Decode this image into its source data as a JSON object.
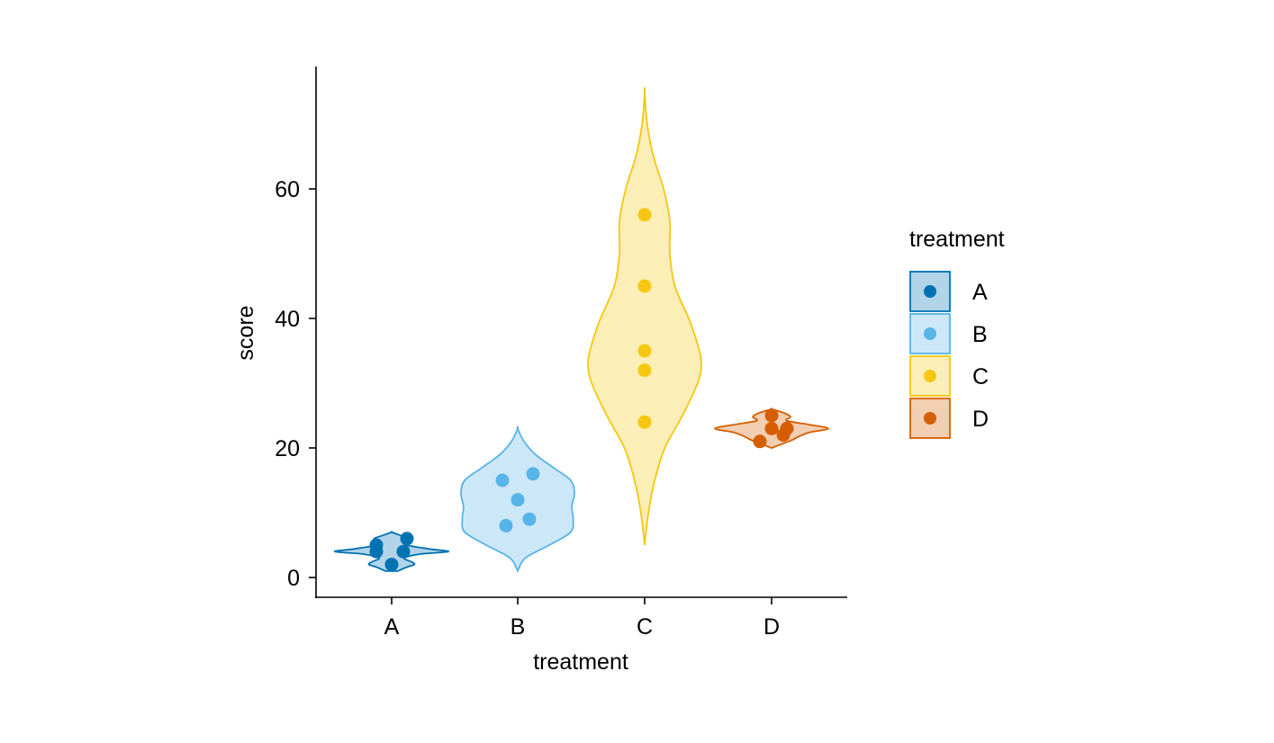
{
  "chart_data": {
    "type": "violin",
    "xlabel": "treatment",
    "ylabel": "score",
    "categories": [
      "A",
      "B",
      "C",
      "D"
    ],
    "y_ticks": [
      0,
      20,
      40,
      60
    ],
    "ylim": [
      -3,
      78
    ],
    "grid": false,
    "legend": {
      "title": "treatment",
      "position": "right"
    },
    "series": [
      {
        "name": "A",
        "color": "#0072B2",
        "values": [
          2,
          4,
          4,
          5,
          6
        ],
        "violin_range": [
          1,
          7
        ],
        "violin_profile": [
          [
            1,
            0.05
          ],
          [
            1.6,
            0.12
          ],
          [
            2,
            0.18
          ],
          [
            2.4,
            0.16
          ],
          [
            3,
            0.1
          ],
          [
            3.6,
            0.22
          ],
          [
            4,
            0.45
          ],
          [
            4.4,
            0.3
          ],
          [
            5,
            0.12
          ],
          [
            5.6,
            0.1
          ],
          [
            6,
            0.14
          ],
          [
            6.5,
            0.07
          ],
          [
            7,
            0.0
          ]
        ]
      },
      {
        "name": "B",
        "color": "#56B4E9",
        "values": [
          8,
          9,
          12,
          15,
          16
        ],
        "violin_range": [
          1,
          23
        ],
        "violin_profile": [
          [
            1,
            0.0
          ],
          [
            3,
            0.06
          ],
          [
            5,
            0.25
          ],
          [
            7,
            0.42
          ],
          [
            9,
            0.44
          ],
          [
            11,
            0.43
          ],
          [
            13,
            0.45
          ],
          [
            15,
            0.42
          ],
          [
            17,
            0.28
          ],
          [
            19,
            0.14
          ],
          [
            21,
            0.05
          ],
          [
            23,
            0.0
          ]
        ]
      },
      {
        "name": "C",
        "color": "#F5C710",
        "values": [
          24,
          32,
          35,
          45,
          56
        ],
        "violin_range": [
          5,
          75
        ],
        "violin_profile": [
          [
            5,
            0.0
          ],
          [
            10,
            0.03
          ],
          [
            15,
            0.08
          ],
          [
            20,
            0.16
          ],
          [
            25,
            0.3
          ],
          [
            30,
            0.42
          ],
          [
            33,
            0.45
          ],
          [
            36,
            0.42
          ],
          [
            40,
            0.35
          ],
          [
            45,
            0.24
          ],
          [
            50,
            0.2
          ],
          [
            55,
            0.2
          ],
          [
            60,
            0.15
          ],
          [
            65,
            0.07
          ],
          [
            70,
            0.02
          ],
          [
            75,
            0.0
          ]
        ]
      },
      {
        "name": "D",
        "color": "#D55E00",
        "values": [
          21,
          22,
          23,
          23,
          25
        ],
        "violin_range": [
          20,
          26
        ],
        "violin_profile": [
          [
            20,
            0.0
          ],
          [
            20.6,
            0.08
          ],
          [
            21.2,
            0.16
          ],
          [
            21.8,
            0.22
          ],
          [
            22.4,
            0.3
          ],
          [
            23,
            0.45
          ],
          [
            23.6,
            0.3
          ],
          [
            24.2,
            0.12
          ],
          [
            24.8,
            0.15
          ],
          [
            25.4,
            0.1
          ],
          [
            26,
            0.0
          ]
        ]
      }
    ]
  }
}
